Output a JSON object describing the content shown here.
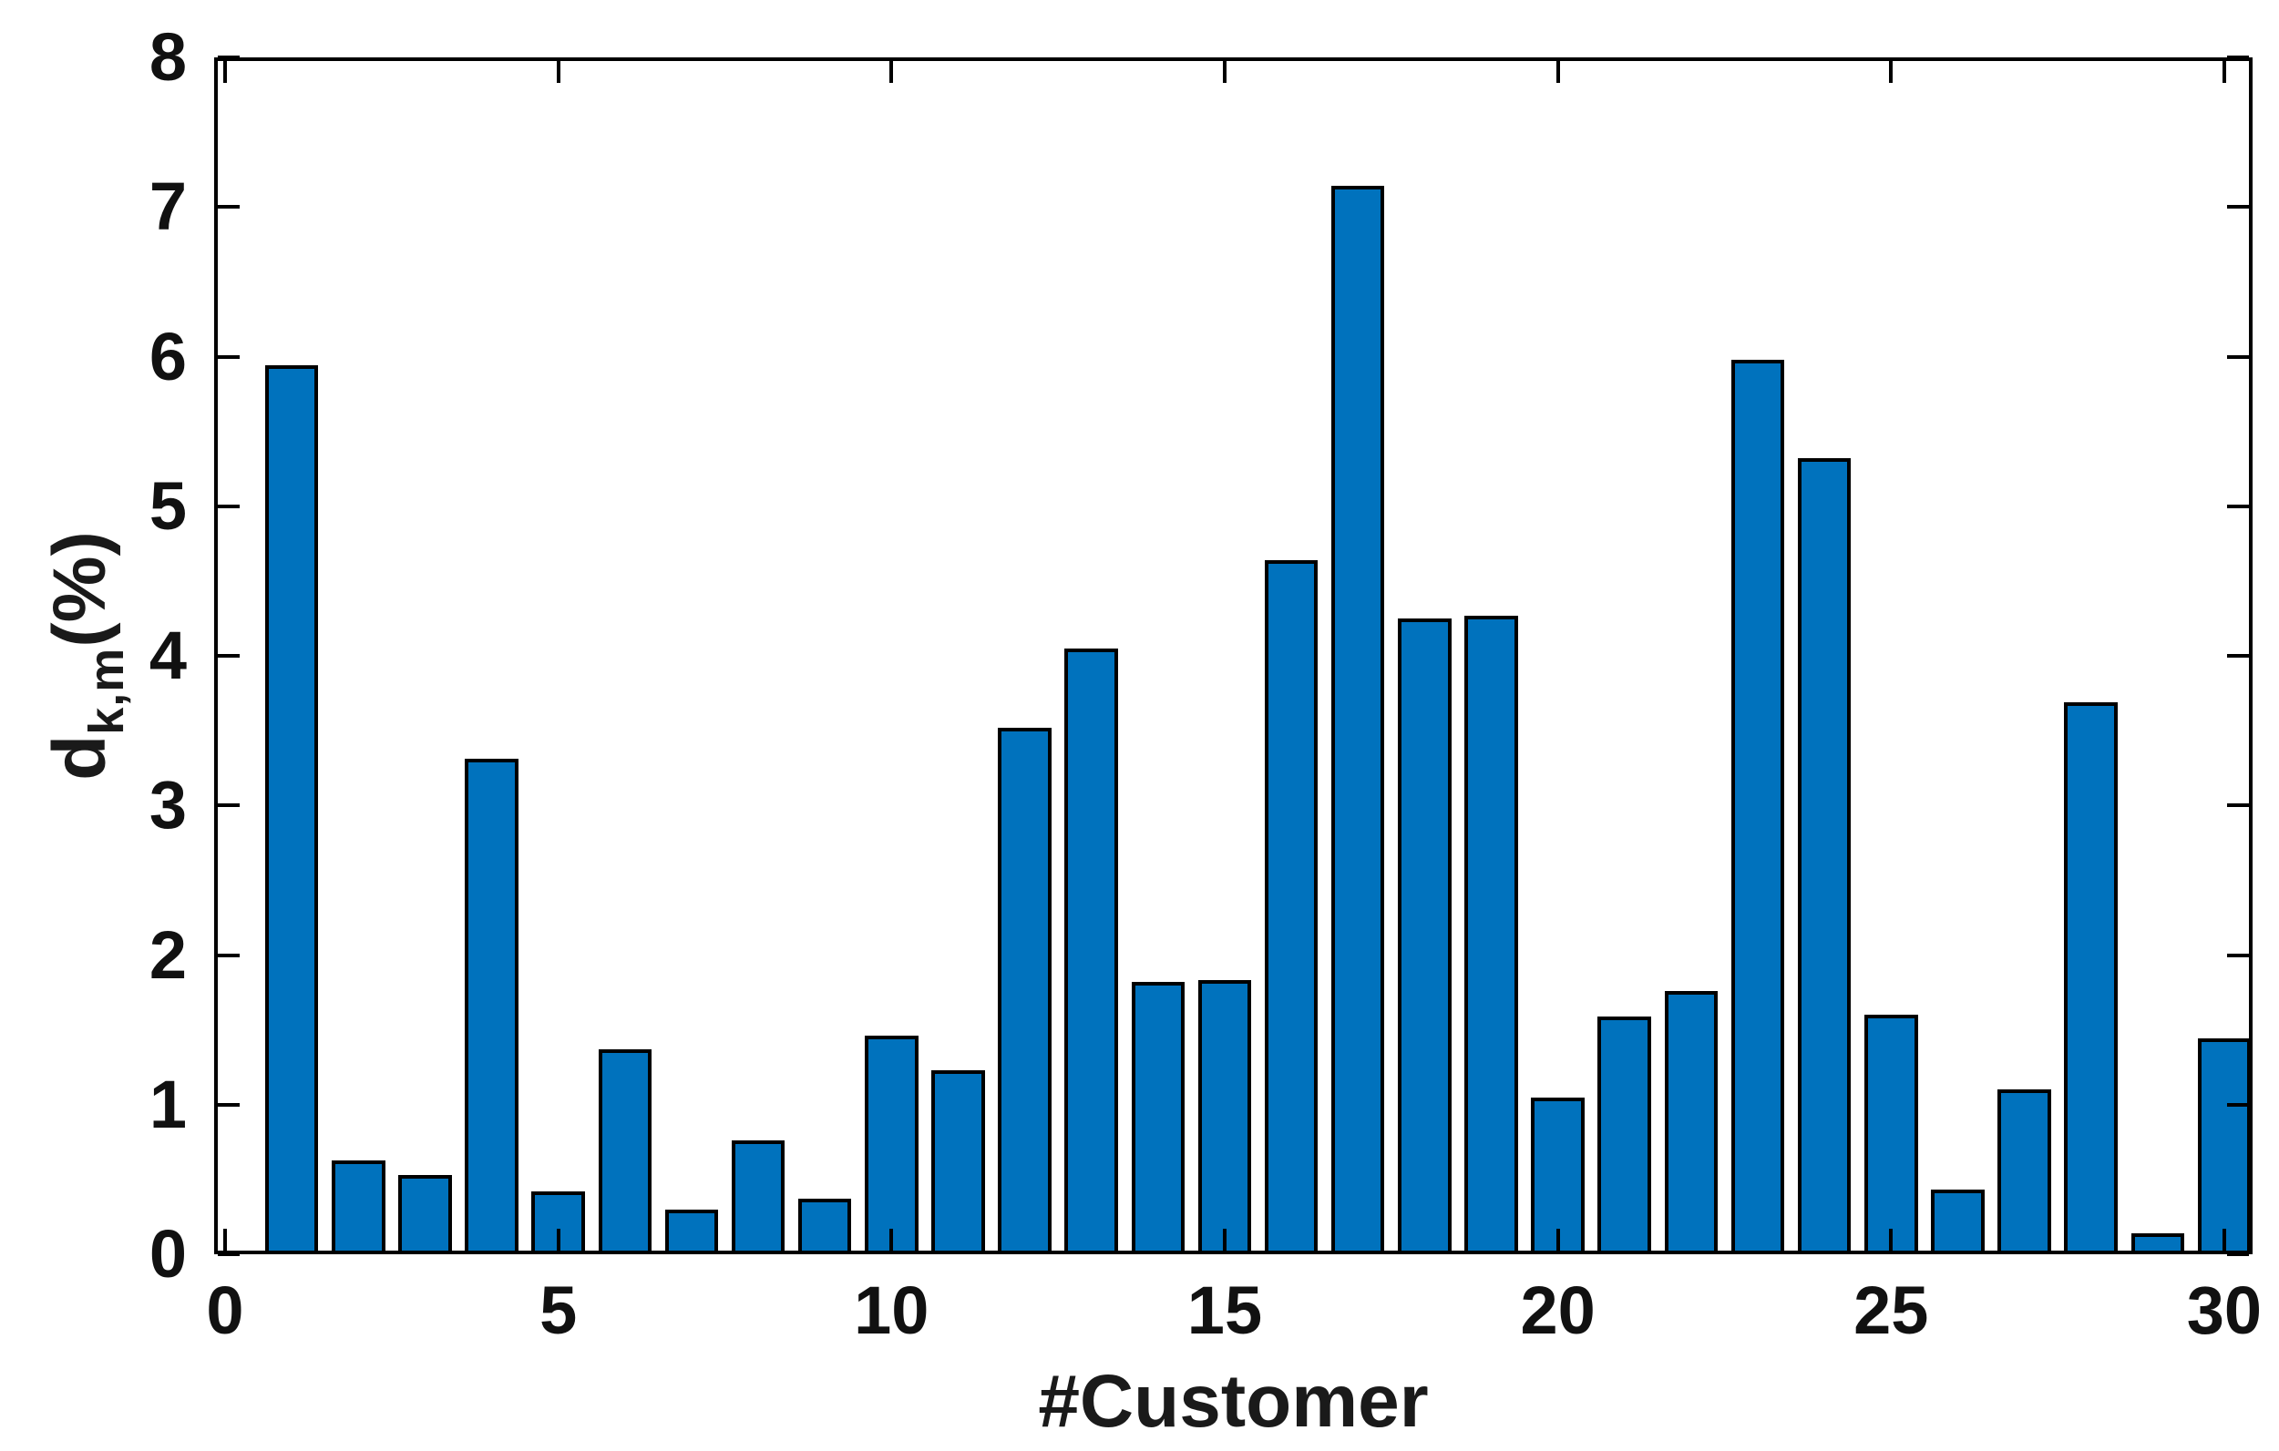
{
  "chart_data": {
    "type": "bar",
    "title": "",
    "xlabel": "#Customer",
    "ylabel": {
      "base": "d",
      "subscript": "k,m",
      "suffix": "(%)"
    },
    "categories": [
      1,
      2,
      3,
      4,
      5,
      6,
      7,
      8,
      9,
      10,
      11,
      12,
      13,
      14,
      15,
      16,
      17,
      18,
      19,
      20,
      21,
      22,
      23,
      24,
      25,
      26,
      27,
      28,
      29,
      30
    ],
    "values": [
      5.94,
      0.63,
      0.53,
      3.31,
      0.42,
      1.37,
      0.3,
      0.76,
      0.37,
      1.46,
      1.23,
      3.52,
      4.05,
      1.82,
      1.83,
      4.64,
      7.14,
      4.25,
      4.27,
      1.05,
      1.59,
      1.76,
      5.98,
      5.32,
      1.6,
      0.43,
      1.1,
      3.69,
      0.14,
      1.44
    ],
    "xticks": [
      0,
      5,
      10,
      15,
      20,
      25,
      30
    ],
    "yticks": [
      0,
      1,
      2,
      3,
      4,
      5,
      6,
      7,
      8
    ],
    "xlim": [
      -0.164,
      30.425
    ],
    "ylim": [
      0,
      8
    ],
    "bar_width_fraction": 0.8,
    "grid": false,
    "legend": null,
    "colors": {
      "bar_fill": "#0072BD",
      "bar_edge": "#000000",
      "axis": "#000000",
      "background": "#FFFFFF",
      "text": "#111111"
    }
  }
}
